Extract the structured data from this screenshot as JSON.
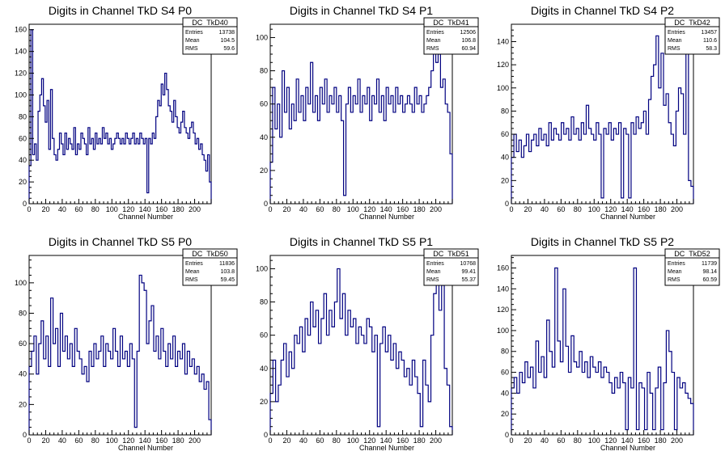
{
  "chart_data": [
    {
      "type": "histogram",
      "title": "Digits in Channel TkD S4 P0",
      "xlabel": "Channel Number",
      "ylabel": "",
      "xlim": [
        0,
        220
      ],
      "ylim": [
        0,
        165
      ],
      "xticks": [
        0,
        20,
        40,
        60,
        80,
        100,
        120,
        140,
        160,
        180,
        200
      ],
      "yticks": [
        20,
        40,
        60,
        80,
        100,
        120,
        140,
        160
      ],
      "stats": {
        "name": "DC_TkD40",
        "entries": "13738",
        "mean": "104.5",
        "rms": "59.6"
      },
      "color": "#000080",
      "values": [
        35,
        160,
        45,
        55,
        40,
        85,
        100,
        115,
        90,
        75,
        95,
        50,
        105,
        60,
        45,
        40,
        50,
        65,
        55,
        45,
        65,
        50,
        60,
        55,
        50,
        70,
        45,
        55,
        50,
        65,
        60,
        55,
        45,
        70,
        55,
        60,
        50,
        65,
        55,
        60,
        55,
        70,
        60,
        65,
        55,
        60,
        50,
        55,
        60,
        65,
        60,
        55,
        60,
        55,
        65,
        60,
        55,
        60,
        65,
        55,
        60,
        55,
        65,
        60,
        55,
        60,
        10,
        60,
        55,
        65,
        60,
        80,
        95,
        90,
        110,
        100,
        120,
        105,
        90,
        85,
        75,
        95,
        80,
        70,
        65,
        75,
        85,
        70,
        65,
        60,
        70,
        75,
        65,
        55,
        60,
        50,
        55,
        45,
        40,
        30,
        45,
        20
      ]
    },
    {
      "type": "histogram",
      "title": "Digits in Channel TkD S4 P1",
      "xlabel": "Channel Number",
      "ylabel": "",
      "xlim": [
        0,
        220
      ],
      "ylim": [
        0,
        108
      ],
      "xticks": [
        0,
        20,
        40,
        60,
        80,
        100,
        120,
        140,
        160,
        180,
        200
      ],
      "yticks": [
        20,
        40,
        60,
        80,
        100
      ],
      "stats": {
        "name": "DC_TkD41",
        "entries": "12506",
        "mean": "106.8",
        "rms": "60.94"
      },
      "color": "#000080",
      "values": [
        25,
        70,
        45,
        60,
        40,
        80,
        55,
        70,
        45,
        60,
        50,
        75,
        55,
        65,
        50,
        70,
        60,
        85,
        55,
        65,
        50,
        70,
        60,
        75,
        55,
        65,
        60,
        70,
        55,
        65,
        50,
        5,
        60,
        70,
        55,
        65,
        60,
        75,
        55,
        65,
        60,
        70,
        50,
        65,
        60,
        75,
        55,
        65,
        50,
        70,
        60,
        65,
        55,
        70,
        60,
        65,
        55,
        60,
        65,
        60,
        55,
        70,
        60,
        65,
        55,
        60,
        65,
        70,
        80,
        95,
        85,
        90,
        70,
        75,
        60,
        55,
        30
      ]
    },
    {
      "type": "histogram",
      "title": "Digits in Channel TkD S4 P2",
      "xlabel": "Channel Number",
      "ylabel": "",
      "xlim": [
        0,
        220
      ],
      "ylim": [
        0,
        155
      ],
      "xticks": [
        0,
        20,
        40,
        60,
        80,
        100,
        120,
        140,
        160,
        180,
        200
      ],
      "yticks": [
        20,
        40,
        60,
        80,
        100,
        120,
        140
      ],
      "stats": {
        "name": "DC_TkD42",
        "entries": "13457",
        "mean": "110.6",
        "rms": "58.3"
      },
      "color": "#000080",
      "values": [
        40,
        60,
        45,
        55,
        40,
        50,
        60,
        45,
        55,
        60,
        50,
        65,
        55,
        60,
        50,
        70,
        55,
        65,
        60,
        55,
        70,
        60,
        65,
        55,
        75,
        60,
        65,
        55,
        70,
        60,
        85,
        65,
        60,
        55,
        70,
        60,
        5,
        65,
        60,
        70,
        55,
        65,
        60,
        70,
        5,
        65,
        60,
        5,
        70,
        60,
        75,
        65,
        70,
        80,
        60,
        90,
        110,
        120,
        145,
        100,
        130,
        85,
        95,
        70,
        60,
        50,
        80,
        100,
        95,
        60,
        145,
        20,
        15
      ]
    },
    {
      "type": "histogram",
      "title": "Digits in Channel TkD S5 P0",
      "xlabel": "Channel Number",
      "ylabel": "",
      "xlim": [
        0,
        220
      ],
      "ylim": [
        0,
        118
      ],
      "xticks": [
        0,
        20,
        40,
        60,
        80,
        100,
        120,
        140,
        160,
        180,
        200
      ],
      "yticks": [
        20,
        40,
        60,
        80,
        100
      ],
      "stats": {
        "name": "DC_TkD50",
        "entries": "11836",
        "mean": "103.8",
        "rms": "59.45"
      },
      "color": "#000080",
      "values": [
        45,
        55,
        65,
        40,
        60,
        75,
        50,
        65,
        45,
        90,
        60,
        70,
        45,
        80,
        55,
        65,
        50,
        60,
        45,
        70,
        55,
        50,
        40,
        45,
        35,
        55,
        45,
        60,
        50,
        55,
        65,
        45,
        60,
        55,
        50,
        70,
        55,
        45,
        65,
        50,
        55,
        45,
        60,
        50,
        5,
        55,
        105,
        100,
        95,
        60,
        75,
        85,
        55,
        65,
        50,
        70,
        55,
        45,
        60,
        50,
        65,
        45,
        55,
        50,
        60,
        40,
        55,
        45,
        50,
        40,
        45,
        35,
        40,
        30,
        35,
        10
      ]
    },
    {
      "type": "histogram",
      "title": "Digits in Channel TkD S5 P1",
      "xlabel": "Channel Number",
      "ylabel": "",
      "xlim": [
        0,
        220
      ],
      "ylim": [
        0,
        108
      ],
      "xticks": [
        0,
        20,
        40,
        60,
        80,
        100,
        120,
        140,
        160,
        180,
        200
      ],
      "yticks": [
        20,
        40,
        60,
        80,
        100
      ],
      "stats": {
        "name": "DC_TkD51",
        "entries": "10768",
        "mean": "99.41",
        "rms": "55.37"
      },
      "color": "#000080",
      "values": [
        25,
        45,
        20,
        30,
        45,
        55,
        35,
        50,
        40,
        60,
        55,
        65,
        50,
        70,
        60,
        80,
        65,
        75,
        55,
        70,
        85,
        60,
        75,
        65,
        80,
        100,
        70,
        85,
        60,
        75,
        65,
        70,
        55,
        65,
        60,
        55,
        70,
        65,
        50,
        60,
        5,
        55,
        65,
        50,
        60,
        45,
        55,
        40,
        50,
        45,
        35,
        40,
        30,
        45,
        35,
        25,
        5,
        45,
        30,
        20,
        60,
        85,
        100,
        75,
        90,
        40,
        30,
        5
      ]
    },
    {
      "type": "histogram",
      "title": "Digits in Channel TkD S5 P2",
      "xlabel": "Channel Number",
      "ylabel": "",
      "xlim": [
        0,
        220
      ],
      "ylim": [
        0,
        172
      ],
      "xticks": [
        0,
        20,
        40,
        60,
        80,
        100,
        120,
        140,
        160,
        180,
        200
      ],
      "yticks": [
        20,
        40,
        60,
        80,
        100,
        120,
        140,
        160
      ],
      "stats": {
        "name": "DC_TkD52",
        "entries": "11739",
        "mean": "98.14",
        "rms": "60.59"
      },
      "color": "#000080",
      "values": [
        45,
        55,
        40,
        60,
        50,
        70,
        55,
        65,
        45,
        90,
        60,
        75,
        55,
        110,
        80,
        65,
        160,
        90,
        70,
        140,
        85,
        60,
        95,
        70,
        65,
        80,
        60,
        70,
        55,
        75,
        65,
        60,
        70,
        55,
        65,
        60,
        50,
        40,
        55,
        45,
        60,
        50,
        5,
        55,
        45,
        160,
        5,
        50,
        45,
        5,
        60,
        40,
        5,
        45,
        65,
        5,
        50,
        100,
        80,
        60,
        5,
        55,
        45,
        50,
        40,
        35,
        30
      ]
    }
  ]
}
